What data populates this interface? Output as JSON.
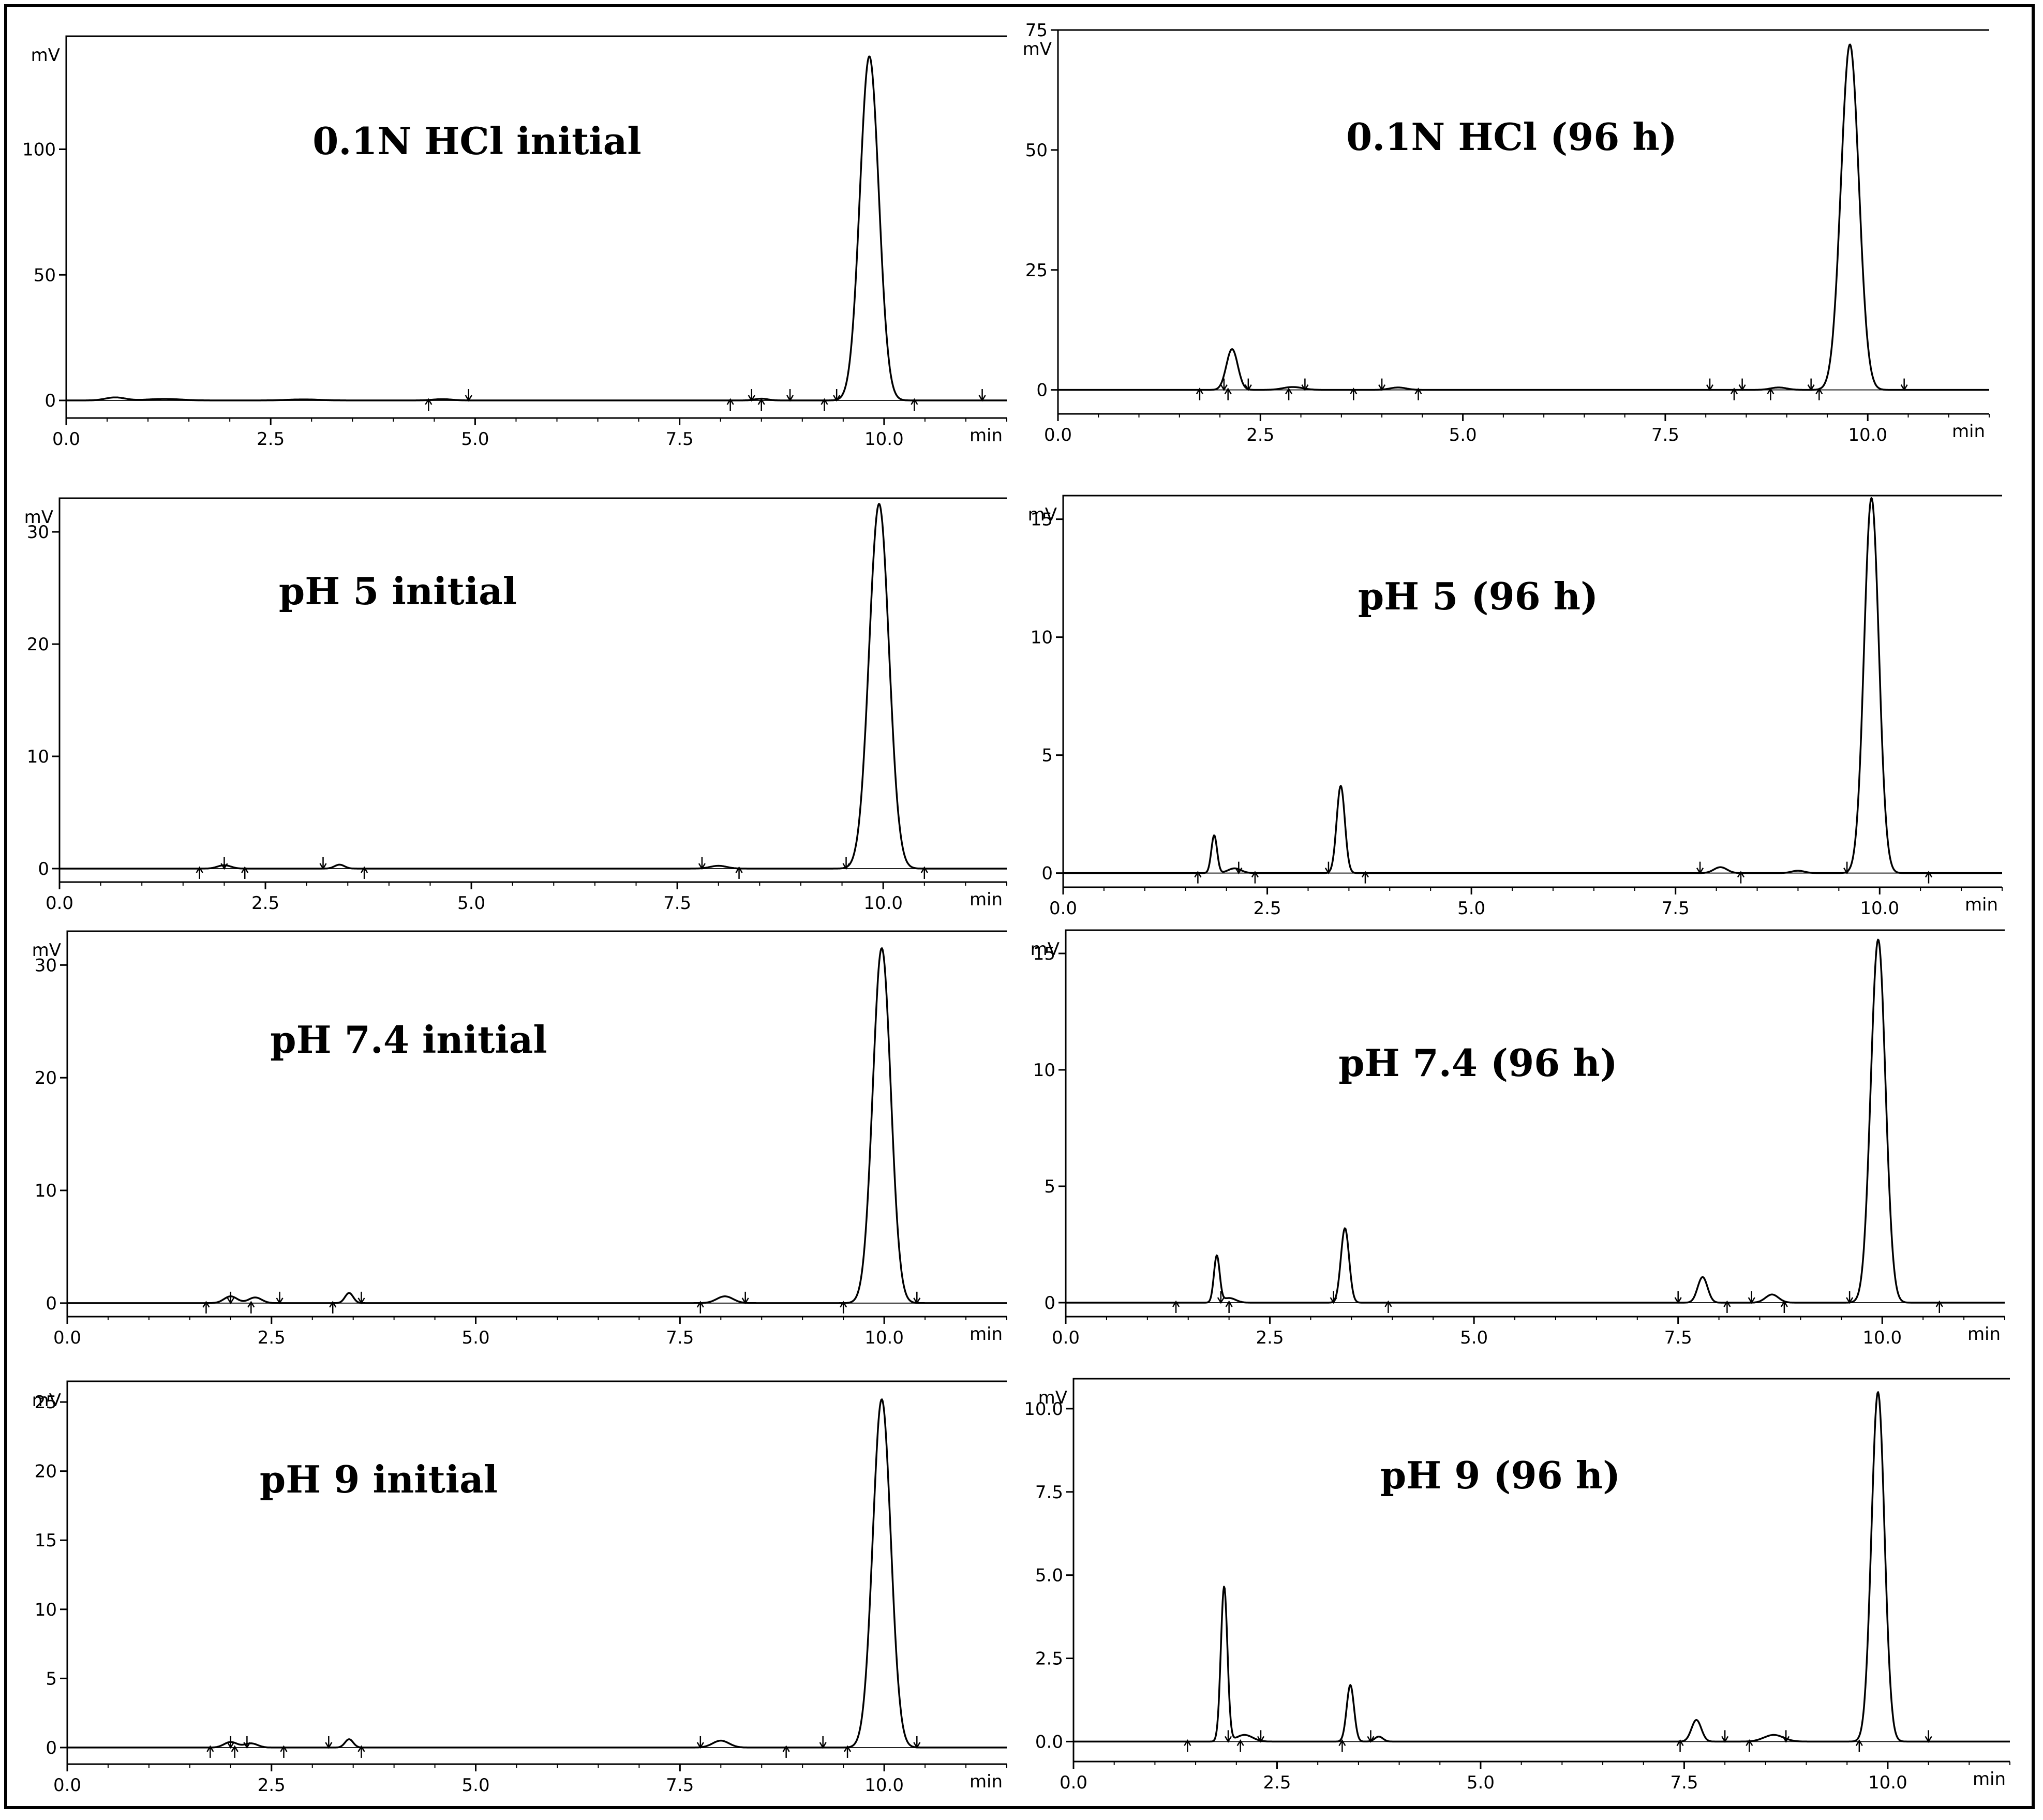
{
  "chart_data": [
    {
      "type": "line",
      "title": "0.1N HCl initial",
      "xlabel": "min",
      "ylabel": "mV",
      "xlim": [
        0,
        11.5
      ],
      "ylim": [
        -7,
        145
      ],
      "xticks": [
        0,
        2.5,
        5,
        7.5,
        10
      ],
      "xtick_labels": [
        "0.0",
        "2.5",
        "5.0",
        "7.5",
        "10.0"
      ],
      "yticks": [
        0,
        50,
        100
      ],
      "ytick_labels": [
        "0",
        "50",
        "100"
      ],
      "series": [
        {
          "peaks": [
            [
              0.6,
              1.2,
              0.12
            ],
            [
              1.2,
              0.6,
              0.2
            ],
            [
              2.9,
              0.4,
              0.2
            ],
            [
              4.6,
              0.5,
              0.12
            ],
            [
              8.5,
              0.7,
              0.08
            ],
            [
              9.82,
              137,
              0.115
            ]
          ]
        }
      ],
      "markers": [
        4.43,
        4.92,
        8.12,
        8.38,
        8.5,
        8.85,
        9.27,
        9.42,
        10.37,
        11.2
      ]
    },
    {
      "type": "line",
      "title": "0.1N HCl (96 h)",
      "xlabel": "min",
      "ylabel": "mV",
      "xlim": [
        0,
        11.5
      ],
      "ylim": [
        -5,
        75
      ],
      "xticks": [
        0,
        2.5,
        5,
        7.5,
        10
      ],
      "xtick_labels": [
        "0.0",
        "2.5",
        "5.0",
        "7.5",
        "10.0"
      ],
      "yticks": [
        0,
        25,
        50,
        75
      ],
      "ytick_labels": [
        "0",
        "25",
        "50",
        "75"
      ],
      "series": [
        {
          "peaks": [
            [
              2.15,
              8.5,
              0.07
            ],
            [
              2.9,
              0.6,
              0.12
            ],
            [
              4.2,
              0.5,
              0.1
            ],
            [
              8.9,
              0.5,
              0.1
            ],
            [
              9.78,
              72,
              0.11
            ]
          ]
        }
      ],
      "markers": [
        1.75,
        2.05,
        2.1,
        2.35,
        2.85,
        3.05,
        3.65,
        4.0,
        4.45,
        8.05,
        8.35,
        8.45,
        8.8,
        9.3,
        9.4,
        10.45
      ]
    },
    {
      "type": "line",
      "title": "pH 5 initial",
      "xlabel": "min",
      "ylabel": "mV",
      "xlim": [
        0,
        11.5
      ],
      "ylim": [
        -1.2,
        33
      ],
      "xticks": [
        0,
        2.5,
        5,
        7.5,
        10
      ],
      "xtick_labels": [
        "0.0",
        "2.5",
        "5.0",
        "7.5",
        "10.0"
      ],
      "yticks": [
        0,
        10,
        20,
        30
      ],
      "ytick_labels": [
        "0",
        "10",
        "20",
        "30"
      ],
      "series": [
        {
          "peaks": [
            [
              2.0,
              0.3,
              0.08
            ],
            [
              3.4,
              0.35,
              0.06
            ],
            [
              8.0,
              0.25,
              0.1
            ],
            [
              9.95,
              32.5,
              0.12
            ]
          ]
        }
      ],
      "markers": [
        1.7,
        2.0,
        2.25,
        3.2,
        3.7,
        7.8,
        8.25,
        9.55,
        10.5
      ]
    },
    {
      "type": "line",
      "title": "pH 5 (96 h)",
      "xlabel": "min",
      "ylabel": "mV",
      "xlim": [
        0,
        11.5
      ],
      "ylim": [
        -0.6,
        16
      ],
      "xticks": [
        0,
        2.5,
        5,
        7.5,
        10
      ],
      "xtick_labels": [
        "0.0",
        "2.5",
        "5.0",
        "7.5",
        "10.0"
      ],
      "yticks": [
        0,
        5,
        10,
        15
      ],
      "ytick_labels": [
        "0",
        "5",
        "10",
        "15"
      ],
      "series": [
        {
          "peaks": [
            [
              1.85,
              1.6,
              0.035
            ],
            [
              2.1,
              0.2,
              0.08
            ],
            [
              3.4,
              3.7,
              0.05
            ],
            [
              8.05,
              0.25,
              0.08
            ],
            [
              9.0,
              0.1,
              0.08
            ],
            [
              9.9,
              15.9,
              0.09
            ]
          ]
        }
      ],
      "markers": [
        1.65,
        2.15,
        2.35,
        3.25,
        3.7,
        7.8,
        8.3,
        9.6,
        10.6
      ]
    },
    {
      "type": "line",
      "title": "pH 7.4 initial",
      "xlabel": "min",
      "ylabel": "mV",
      "xlim": [
        0,
        11.5
      ],
      "ylim": [
        -1.2,
        33
      ],
      "xticks": [
        0,
        2.5,
        5,
        7.5,
        10
      ],
      "xtick_labels": [
        "0.0",
        "2.5",
        "5.0",
        "7.5",
        "10.0"
      ],
      "yticks": [
        0,
        10,
        20,
        30
      ],
      "ytick_labels": [
        "0",
        "10",
        "20",
        "30"
      ],
      "series": [
        {
          "peaks": [
            [
              2.0,
              0.6,
              0.08
            ],
            [
              2.3,
              0.5,
              0.08
            ],
            [
              3.45,
              0.9,
              0.05
            ],
            [
              8.05,
              0.6,
              0.1
            ],
            [
              9.97,
              31.5,
              0.11
            ]
          ]
        }
      ],
      "markers": [
        1.7,
        2.0,
        2.25,
        2.6,
        3.25,
        3.6,
        7.75,
        8.3,
        9.5,
        10.4
      ]
    },
    {
      "type": "line",
      "title": "pH 7.4 (96 h)",
      "xlabel": "min",
      "ylabel": "mV",
      "xlim": [
        0,
        11.5
      ],
      "ylim": [
        -0.6,
        16
      ],
      "xticks": [
        0,
        2.5,
        5,
        7.5,
        10
      ],
      "xtick_labels": [
        "0.0",
        "2.5",
        "5.0",
        "7.5",
        "10.0"
      ],
      "yticks": [
        0,
        5,
        10,
        15
      ],
      "ytick_labels": [
        "0",
        "5",
        "10",
        "15"
      ],
      "series": [
        {
          "peaks": [
            [
              1.85,
              2.0,
              0.035
            ],
            [
              2.0,
              0.2,
              0.08
            ],
            [
              3.42,
              3.2,
              0.05
            ],
            [
              7.8,
              1.1,
              0.06
            ],
            [
              8.65,
              0.35,
              0.08
            ],
            [
              9.95,
              15.6,
              0.09
            ]
          ]
        }
      ],
      "markers": [
        1.35,
        1.9,
        2.0,
        3.28,
        3.95,
        7.5,
        8.1,
        8.4,
        8.8,
        9.6,
        10.7
      ]
    },
    {
      "type": "line",
      "title": "pH 9 initial",
      "xlabel": "min",
      "ylabel": "mV",
      "xlim": [
        0,
        11.5
      ],
      "ylim": [
        -1.2,
        26.5
      ],
      "xticks": [
        0,
        2.5,
        5,
        7.5,
        10
      ],
      "xtick_labels": [
        "0.0",
        "2.5",
        "5.0",
        "7.5",
        "10.0"
      ],
      "yticks": [
        0,
        5,
        10,
        15,
        20,
        25
      ],
      "ytick_labels": [
        "0",
        "5",
        "10",
        "15",
        "20",
        "25"
      ],
      "series": [
        {
          "peaks": [
            [
              2.0,
              0.4,
              0.08
            ],
            [
              2.25,
              0.3,
              0.08
            ],
            [
              3.45,
              0.6,
              0.05
            ],
            [
              8.0,
              0.5,
              0.1
            ],
            [
              9.97,
              25.2,
              0.11
            ]
          ]
        }
      ],
      "markers": [
        1.75,
        2.0,
        2.05,
        2.2,
        2.65,
        3.2,
        3.6,
        7.75,
        8.8,
        9.25,
        9.55,
        10.4
      ]
    },
    {
      "type": "line",
      "title": "pH 9 (96 h)",
      "xlabel": "min",
      "ylabel": "mV",
      "xlim": [
        0,
        11.5
      ],
      "ylim": [
        -0.6,
        10.9
      ],
      "xticks": [
        0,
        2.5,
        5,
        7.5,
        10
      ],
      "xtick_labels": [
        "0.0",
        "2.5",
        "5.0",
        "7.5",
        "10.0"
      ],
      "yticks": [
        0,
        2.5,
        5,
        7.5,
        10
      ],
      "ytick_labels": [
        "0.0",
        "2.5",
        "5.0",
        "7.5",
        "10.0"
      ],
      "series": [
        {
          "peaks": [
            [
              1.85,
              4.65,
              0.04
            ],
            [
              2.1,
              0.2,
              0.1
            ],
            [
              3.4,
              1.7,
              0.045
            ],
            [
              3.75,
              0.15,
              0.05
            ],
            [
              7.65,
              0.65,
              0.06
            ],
            [
              8.6,
              0.2,
              0.12
            ],
            [
              9.88,
              10.5,
              0.08
            ]
          ]
        }
      ],
      "markers": [
        1.4,
        1.9,
        2.05,
        2.3,
        3.3,
        3.65,
        7.45,
        8.0,
        8.3,
        8.75,
        9.65,
        10.5
      ]
    }
  ]
}
